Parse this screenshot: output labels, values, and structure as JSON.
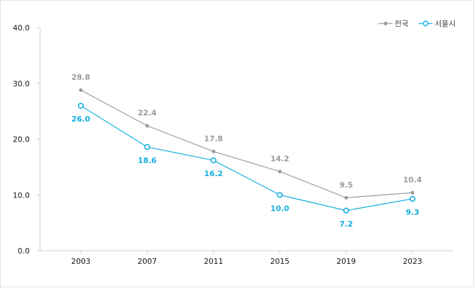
{
  "chart_data": {
    "type": "line",
    "title": "",
    "xlabel": "",
    "ylabel": "",
    "ylim": [
      0,
      40
    ],
    "y_ticks": [
      "0.0",
      "10.0",
      "20.0",
      "30.0",
      "40.0"
    ],
    "categories": [
      "2003",
      "2007",
      "2011",
      "2015",
      "2019",
      "2023"
    ],
    "legend_position": "top-right",
    "grid": false,
    "series": [
      {
        "name": "전국",
        "color": "#9a9a9a",
        "marker": "filled-dot",
        "values": [
          28.8,
          22.4,
          17.8,
          14.2,
          9.5,
          10.4
        ],
        "labels": [
          "28.8",
          "22.4",
          "17.8",
          "14.2",
          "9.5",
          "10.4"
        ]
      },
      {
        "name": "서울시",
        "color": "#12aee0",
        "marker": "hollow-circle",
        "values": [
          26.0,
          18.6,
          16.2,
          10.0,
          7.2,
          9.3
        ],
        "labels": [
          "26.0",
          "18.6",
          "16.2",
          "10.0",
          "7.2",
          "9.3"
        ]
      }
    ]
  }
}
